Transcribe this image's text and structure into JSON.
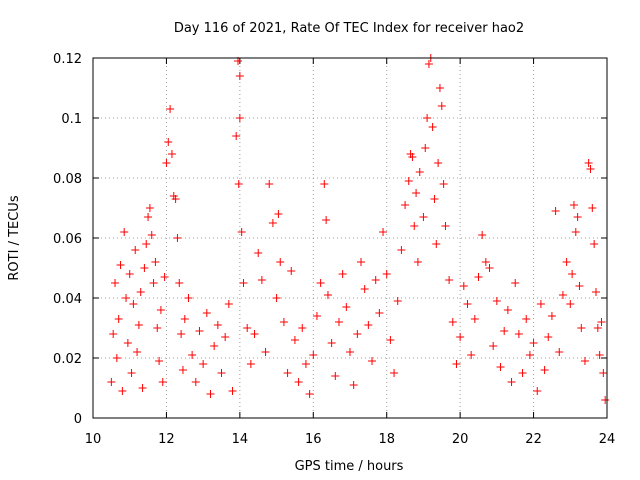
{
  "chart_data": {
    "type": "scatter",
    "title": "Day 116 of 2021, Rate Of TEC Index for receiver hao2",
    "xlabel": "GPS time / hours",
    "ylabel": "ROTI / TECUs",
    "xlim": [
      10,
      24
    ],
    "ylim": [
      0,
      0.12
    ],
    "x_ticks": [
      "10",
      "12",
      "14",
      "16",
      "18",
      "20",
      "22",
      "24"
    ],
    "y_ticks": [
      "0",
      "0.02",
      "0.04",
      "0.06",
      "0.08",
      "0.1",
      "0.12"
    ],
    "grid": true,
    "marker": "plus",
    "color": "#ff0000",
    "series": [
      {
        "points": [
          [
            10.5,
            0.012
          ],
          [
            10.55,
            0.028
          ],
          [
            10.6,
            0.045
          ],
          [
            10.65,
            0.02
          ],
          [
            10.7,
            0.033
          ],
          [
            10.75,
            0.051
          ],
          [
            10.8,
            0.009
          ],
          [
            10.85,
            0.062
          ],
          [
            10.9,
            0.04
          ],
          [
            10.95,
            0.025
          ],
          [
            11.0,
            0.048
          ],
          [
            11.05,
            0.015
          ],
          [
            11.1,
            0.038
          ],
          [
            11.15,
            0.056
          ],
          [
            11.2,
            0.022
          ],
          [
            11.25,
            0.031
          ],
          [
            11.3,
            0.042
          ],
          [
            11.35,
            0.01
          ],
          [
            11.4,
            0.05
          ],
          [
            11.45,
            0.058
          ],
          [
            11.5,
            0.067
          ],
          [
            11.55,
            0.07
          ],
          [
            11.6,
            0.061
          ],
          [
            11.65,
            0.045
          ],
          [
            11.7,
            0.052
          ],
          [
            11.75,
            0.03
          ],
          [
            11.8,
            0.019
          ],
          [
            11.85,
            0.036
          ],
          [
            11.9,
            0.012
          ],
          [
            11.95,
            0.047
          ],
          [
            12.0,
            0.085
          ],
          [
            12.05,
            0.092
          ],
          [
            12.1,
            0.103
          ],
          [
            12.15,
            0.088
          ],
          [
            12.2,
            0.074
          ],
          [
            12.25,
            0.073
          ],
          [
            12.3,
            0.06
          ],
          [
            12.35,
            0.045
          ],
          [
            12.4,
            0.028
          ],
          [
            12.45,
            0.016
          ],
          [
            12.5,
            0.033
          ],
          [
            12.6,
            0.04
          ],
          [
            12.7,
            0.021
          ],
          [
            12.8,
            0.012
          ],
          [
            12.9,
            0.029
          ],
          [
            13.0,
            0.018
          ],
          [
            13.1,
            0.035
          ],
          [
            13.2,
            0.008
          ],
          [
            13.3,
            0.024
          ],
          [
            13.4,
            0.031
          ],
          [
            13.5,
            0.015
          ],
          [
            13.6,
            0.027
          ],
          [
            13.7,
            0.038
          ],
          [
            13.8,
            0.009
          ],
          [
            13.9,
            0.094
          ],
          [
            13.95,
            0.119
          ],
          [
            14.0,
            0.114
          ],
          [
            14.0,
            0.1
          ],
          [
            13.97,
            0.078
          ],
          [
            14.05,
            0.062
          ],
          [
            14.1,
            0.045
          ],
          [
            14.2,
            0.03
          ],
          [
            14.3,
            0.018
          ],
          [
            14.4,
            0.028
          ],
          [
            14.5,
            0.055
          ],
          [
            14.6,
            0.046
          ],
          [
            14.7,
            0.022
          ],
          [
            14.8,
            0.078
          ],
          [
            14.9,
            0.065
          ],
          [
            15.0,
            0.04
          ],
          [
            15.05,
            0.068
          ],
          [
            15.1,
            0.052
          ],
          [
            15.2,
            0.032
          ],
          [
            15.3,
            0.015
          ],
          [
            15.4,
            0.049
          ],
          [
            15.5,
            0.026
          ],
          [
            15.6,
            0.012
          ],
          [
            15.7,
            0.03
          ],
          [
            15.8,
            0.018
          ],
          [
            15.9,
            0.008
          ],
          [
            16.0,
            0.021
          ],
          [
            16.1,
            0.034
          ],
          [
            16.2,
            0.045
          ],
          [
            16.3,
            0.078
          ],
          [
            16.35,
            0.066
          ],
          [
            16.4,
            0.041
          ],
          [
            16.5,
            0.025
          ],
          [
            16.6,
            0.014
          ],
          [
            16.7,
            0.032
          ],
          [
            16.8,
            0.048
          ],
          [
            16.9,
            0.037
          ],
          [
            17.0,
            0.022
          ],
          [
            17.1,
            0.011
          ],
          [
            17.2,
            0.028
          ],
          [
            17.3,
            0.052
          ],
          [
            17.4,
            0.043
          ],
          [
            17.5,
            0.031
          ],
          [
            17.6,
            0.019
          ],
          [
            17.7,
            0.046
          ],
          [
            17.8,
            0.035
          ],
          [
            17.9,
            0.062
          ],
          [
            18.0,
            0.048
          ],
          [
            18.1,
            0.026
          ],
          [
            18.2,
            0.015
          ],
          [
            18.3,
            0.039
          ],
          [
            18.4,
            0.056
          ],
          [
            18.5,
            0.071
          ],
          [
            18.6,
            0.079
          ],
          [
            18.65,
            0.088
          ],
          [
            18.7,
            0.087
          ],
          [
            18.75,
            0.064
          ],
          [
            18.8,
            0.075
          ],
          [
            18.85,
            0.052
          ],
          [
            18.9,
            0.082
          ],
          [
            19.0,
            0.067
          ],
          [
            19.05,
            0.09
          ],
          [
            19.1,
            0.1
          ],
          [
            19.15,
            0.118
          ],
          [
            19.2,
            0.12
          ],
          [
            19.25,
            0.097
          ],
          [
            19.3,
            0.073
          ],
          [
            19.35,
            0.058
          ],
          [
            19.4,
            0.085
          ],
          [
            19.45,
            0.11
          ],
          [
            19.5,
            0.104
          ],
          [
            19.55,
            0.078
          ],
          [
            19.6,
            0.064
          ],
          [
            19.7,
            0.046
          ],
          [
            19.8,
            0.032
          ],
          [
            19.9,
            0.018
          ],
          [
            20.0,
            0.027
          ],
          [
            20.1,
            0.044
          ],
          [
            20.2,
            0.038
          ],
          [
            20.3,
            0.021
          ],
          [
            20.4,
            0.033
          ],
          [
            20.5,
            0.047
          ],
          [
            20.6,
            0.061
          ],
          [
            20.7,
            0.052
          ],
          [
            20.8,
            0.05
          ],
          [
            20.9,
            0.024
          ],
          [
            21.0,
            0.039
          ],
          [
            21.1,
            0.017
          ],
          [
            21.2,
            0.029
          ],
          [
            21.3,
            0.036
          ],
          [
            21.4,
            0.012
          ],
          [
            21.5,
            0.045
          ],
          [
            21.6,
            0.028
          ],
          [
            21.7,
            0.015
          ],
          [
            21.8,
            0.033
          ],
          [
            21.9,
            0.021
          ],
          [
            22.0,
            0.025
          ],
          [
            22.1,
            0.009
          ],
          [
            22.2,
            0.038
          ],
          [
            22.3,
            0.016
          ],
          [
            22.4,
            0.027
          ],
          [
            22.5,
            0.034
          ],
          [
            22.6,
            0.069
          ],
          [
            22.7,
            0.022
          ],
          [
            22.8,
            0.041
          ],
          [
            22.9,
            0.052
          ],
          [
            23.0,
            0.038
          ],
          [
            23.05,
            0.048
          ],
          [
            23.1,
            0.071
          ],
          [
            23.15,
            0.062
          ],
          [
            23.2,
            0.067
          ],
          [
            23.25,
            0.044
          ],
          [
            23.3,
            0.03
          ],
          [
            23.4,
            0.019
          ],
          [
            23.5,
            0.085
          ],
          [
            23.55,
            0.083
          ],
          [
            23.6,
            0.07
          ],
          [
            23.65,
            0.058
          ],
          [
            23.7,
            0.042
          ],
          [
            23.75,
            0.03
          ],
          [
            23.8,
            0.021
          ],
          [
            23.85,
            0.032
          ],
          [
            23.9,
            0.015
          ],
          [
            23.95,
            0.006
          ]
        ]
      }
    ]
  }
}
